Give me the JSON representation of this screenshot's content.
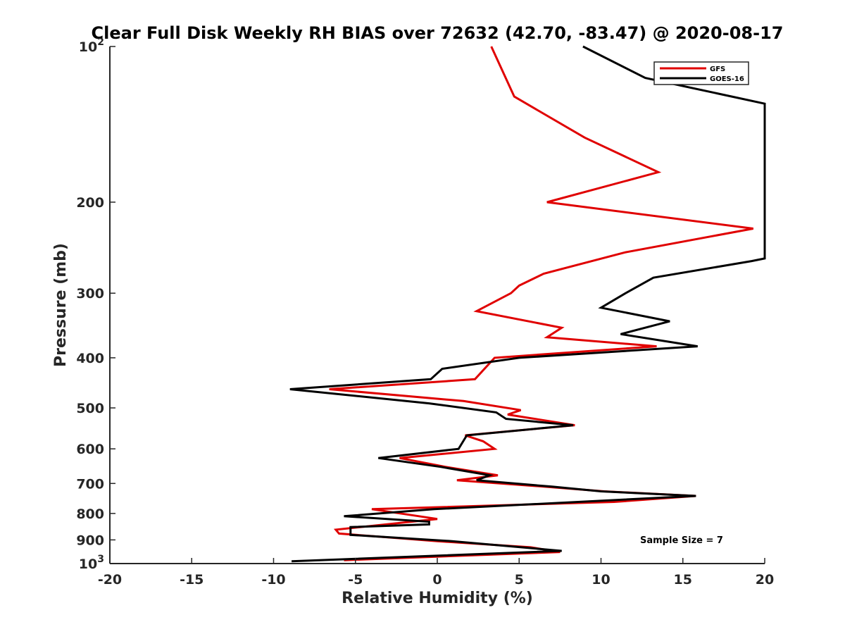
{
  "chart_data": {
    "type": "line",
    "title": "Clear Full Disk Weekly RH BIAS over 72632 (42.70, -83.47) @ 2020-08-17",
    "xlabel": "Relative Humidity (%)",
    "ylabel": "Pressure (mb)",
    "xlim": [
      -20,
      20
    ],
    "ylim": [
      1000,
      100
    ],
    "y_scale": "log",
    "y_reversed": true,
    "grid": false,
    "legend_position": "top-right",
    "x_ticks": [
      "-20",
      "-15",
      "-10",
      "-5",
      "0",
      "5",
      "10",
      "15",
      "20"
    ],
    "y_ticks": [
      {
        "value": 100,
        "base": "10",
        "exp": "2"
      },
      {
        "value": 200,
        "base": "200",
        "exp": ""
      },
      {
        "value": 300,
        "base": "300",
        "exp": ""
      },
      {
        "value": 400,
        "base": "400",
        "exp": ""
      },
      {
        "value": 500,
        "base": "500",
        "exp": ""
      },
      {
        "value": 600,
        "base": "600",
        "exp": ""
      },
      {
        "value": 700,
        "base": "700",
        "exp": ""
      },
      {
        "value": 800,
        "base": "800",
        "exp": ""
      },
      {
        "value": 900,
        "base": "900",
        "exp": ""
      },
      {
        "value": 1000,
        "base": "10",
        "exp": "3"
      }
    ],
    "annotation": "Sample Size = 7",
    "series": [
      {
        "name": "GFS",
        "color": "#e00000",
        "points": [
          [
            3.3,
            100
          ],
          [
            4.7,
            125
          ],
          [
            9.0,
            150
          ],
          [
            13.5,
            175
          ],
          [
            6.7,
            200
          ],
          [
            19.3,
            225
          ],
          [
            11.5,
            250
          ],
          [
            6.5,
            275
          ],
          [
            5.0,
            290
          ],
          [
            4.5,
            300
          ],
          [
            2.4,
            325
          ],
          [
            7.6,
            350
          ],
          [
            6.7,
            365
          ],
          [
            13.4,
            380
          ],
          [
            3.5,
            400
          ],
          [
            2.3,
            440
          ],
          [
            -6.6,
            460
          ],
          [
            1.6,
            485
          ],
          [
            5.1,
            505
          ],
          [
            4.3,
            515
          ],
          [
            8.4,
            540
          ],
          [
            1.7,
            565
          ],
          [
            2.8,
            580
          ],
          [
            3.5,
            600
          ],
          [
            -2.3,
            625
          ],
          [
            0.5,
            650
          ],
          [
            3.7,
            675
          ],
          [
            1.2,
            690
          ],
          [
            6.5,
            710
          ],
          [
            10.2,
            725
          ],
          [
            15.8,
            740
          ],
          [
            10.8,
            760
          ],
          [
            -4.0,
            785
          ],
          [
            0.0,
            820
          ],
          [
            -6.2,
            860
          ],
          [
            -6.0,
            875
          ],
          [
            0.0,
            905
          ],
          [
            5.7,
            930
          ],
          [
            7.5,
            950
          ],
          [
            -5.7,
            985
          ]
        ]
      },
      {
        "name": "GOES-16",
        "color": "#000000",
        "points": [
          [
            8.9,
            100
          ],
          [
            12.7,
            115
          ],
          [
            18.0,
            125
          ],
          [
            20.0,
            129
          ],
          [
            20.0,
            257
          ],
          [
            19.2,
            260
          ],
          [
            13.2,
            280
          ],
          [
            11.5,
            300
          ],
          [
            10.0,
            320
          ],
          [
            14.2,
            340
          ],
          [
            11.2,
            360
          ],
          [
            15.9,
            380
          ],
          [
            5.0,
            400
          ],
          [
            0.3,
            420
          ],
          [
            -0.4,
            440
          ],
          [
            -9.0,
            460
          ],
          [
            -0.5,
            490
          ],
          [
            3.6,
            510
          ],
          [
            4.2,
            525
          ],
          [
            8.3,
            540
          ],
          [
            1.8,
            565
          ],
          [
            1.3,
            600
          ],
          [
            -3.6,
            625
          ],
          [
            0.2,
            650
          ],
          [
            3.2,
            675
          ],
          [
            2.4,
            690
          ],
          [
            7.0,
            710
          ],
          [
            10.0,
            725
          ],
          [
            15.8,
            740
          ],
          [
            -0.2,
            785
          ],
          [
            -5.7,
            810
          ],
          [
            -0.5,
            830
          ],
          [
            -0.5,
            840
          ],
          [
            -5.3,
            850
          ],
          [
            -5.3,
            880
          ],
          [
            0.9,
            905
          ],
          [
            7.6,
            945
          ],
          [
            -8.9,
            990
          ]
        ]
      }
    ]
  }
}
